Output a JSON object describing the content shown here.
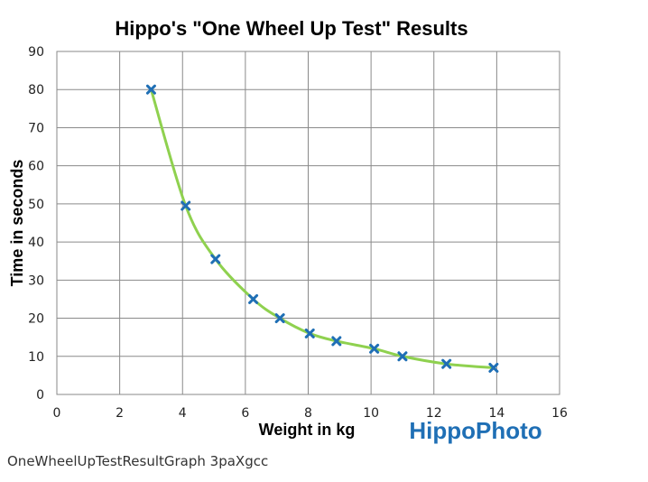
{
  "chart_data": {
    "type": "scatter",
    "title": "Hippo's  \"One Wheel Up Test\" Results",
    "xlabel": "Weight in  kg",
    "ylabel": "Time in  seconds",
    "xlim": [
      0,
      16
    ],
    "ylim": [
      0,
      90
    ],
    "xticks": [
      0,
      2,
      4,
      6,
      8,
      10,
      12,
      14,
      16
    ],
    "yticks": [
      0,
      10,
      20,
      30,
      40,
      50,
      60,
      70,
      80,
      90
    ],
    "grid": true,
    "legend": "none",
    "series": [
      {
        "x": [
          3.0,
          4.1,
          5.05,
          6.25,
          7.1,
          8.05,
          8.9,
          10.1,
          11.0,
          12.4,
          13.9
        ],
        "y": [
          80,
          49.5,
          35.5,
          25,
          20,
          16,
          14,
          12,
          10,
          8,
          7
        ],
        "marker": "x",
        "marker_color": "#1f6fb5",
        "line_color": "#8fd14f",
        "smooth": true
      }
    ]
  },
  "watermark": {
    "text": "HippoPhoto",
    "color": "#1f6fb5"
  },
  "caption": "OneWheelUpTestResultGraph 3paXgcc"
}
